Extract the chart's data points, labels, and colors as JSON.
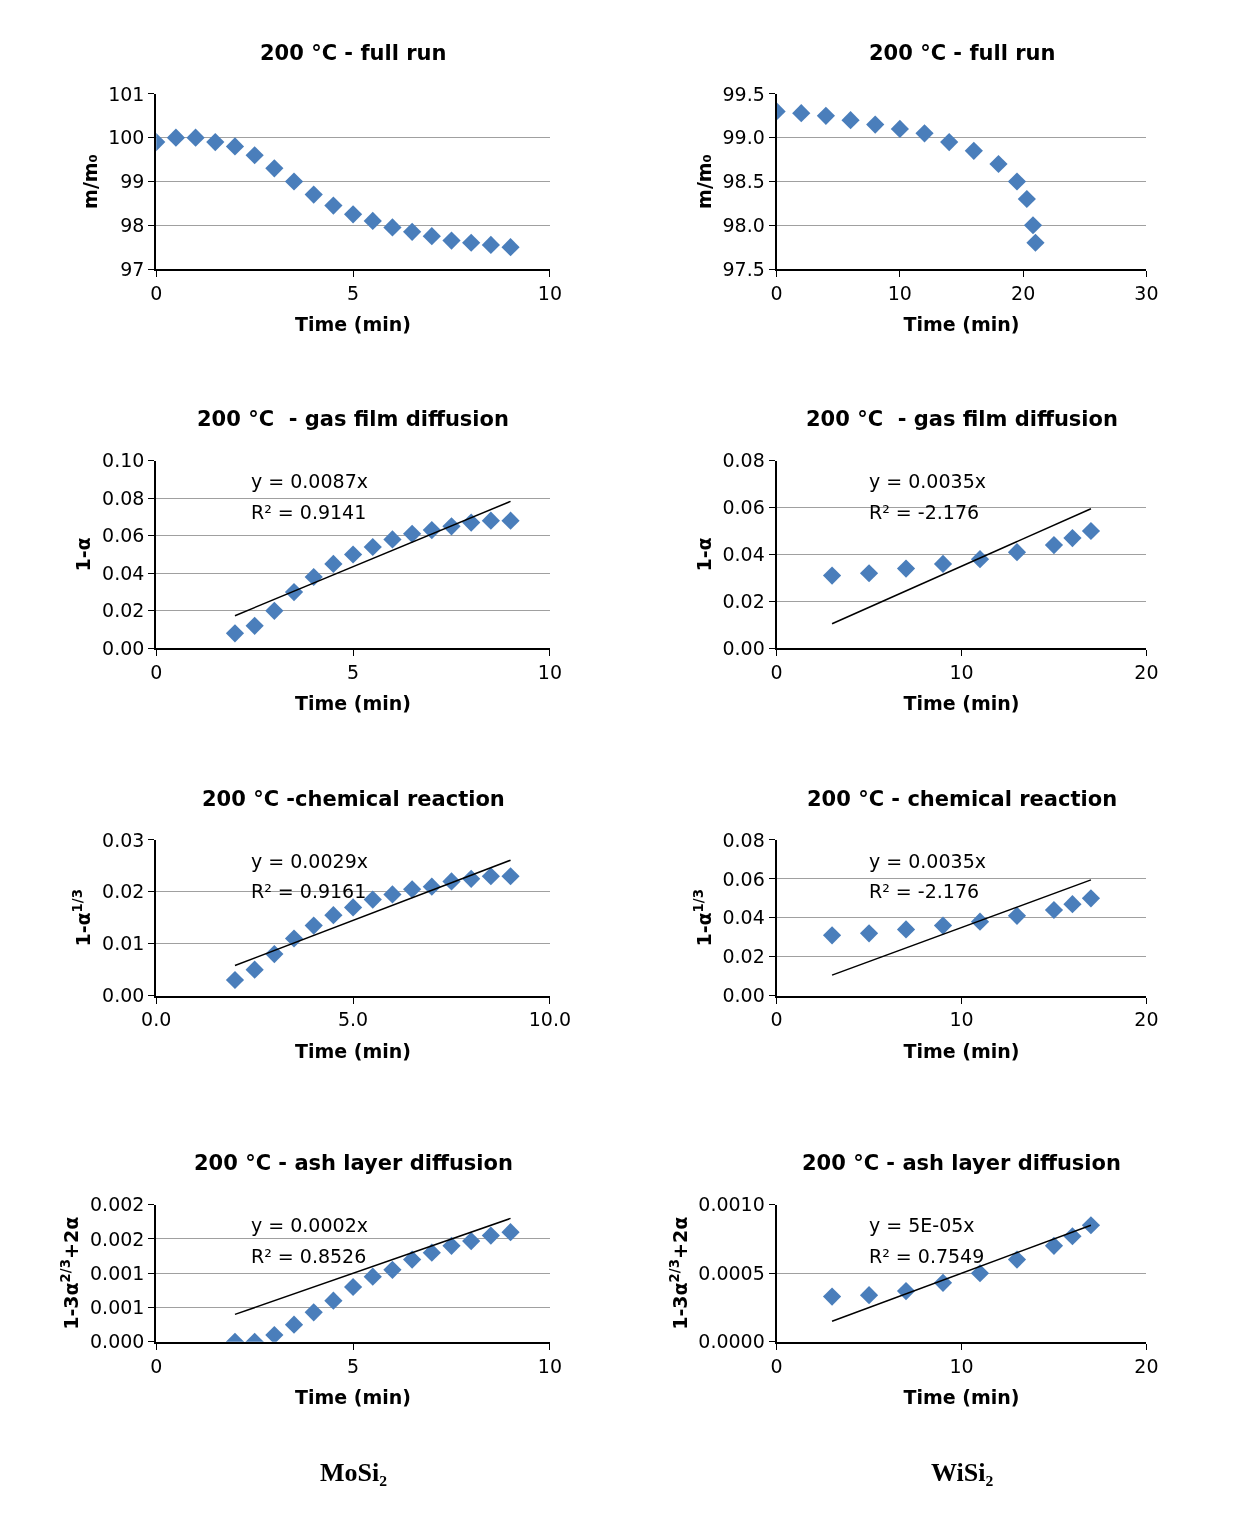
{
  "chart_data": [
    {
      "type": "scatter",
      "title": "200 °C - full run",
      "xlabel": "Time (min)",
      "ylabel": "m/m₀",
      "xlim": [
        0,
        10
      ],
      "xticks": [
        0,
        5,
        10
      ],
      "ylim": [
        97,
        101
      ],
      "yticks": [
        97,
        98,
        99,
        100,
        101
      ],
      "grid": "y",
      "marker": "diamond",
      "series": [
        {
          "color": "#4a7ebb",
          "x": [
            0,
            0.5,
            1,
            1.5,
            2,
            2.5,
            3,
            3.5,
            4,
            4.5,
            5,
            5.5,
            6,
            6.5,
            7,
            7.5,
            8,
            8.5,
            9
          ],
          "values": [
            99.9,
            100.0,
            100.0,
            99.9,
            99.8,
            99.6,
            99.3,
            99.0,
            98.7,
            98.45,
            98.25,
            98.1,
            97.95,
            97.85,
            97.75,
            97.65,
            97.6,
            97.55,
            97.5
          ]
        }
      ]
    },
    {
      "type": "scatter",
      "title": "200 °C - full run",
      "xlabel": "Time (min)",
      "ylabel": "m/m₀",
      "xlim": [
        0,
        30
      ],
      "xticks": [
        0,
        10,
        20,
        30
      ],
      "ylim": [
        97.5,
        99.5
      ],
      "yticks": [
        {
          "value": 97.5,
          "label": "97.5"
        },
        {
          "value": 98,
          "label": "98.0"
        },
        {
          "value": 98.5,
          "label": "98.5"
        },
        {
          "value": 99,
          "label": "99.0"
        },
        {
          "value": 99.5,
          "label": "99.5"
        }
      ],
      "grid": "y",
      "marker": "diamond",
      "series": [
        {
          "color": "#4a7ebb",
          "x": [
            0,
            2,
            4,
            6,
            8,
            10,
            12,
            14,
            16,
            18,
            19.5,
            20.3,
            20.8,
            21
          ],
          "values": [
            99.3,
            99.28,
            99.25,
            99.2,
            99.15,
            99.1,
            99.05,
            98.95,
            98.85,
            98.7,
            98.5,
            98.3,
            98.0,
            97.8
          ]
        }
      ]
    },
    {
      "type": "scatter",
      "title": "200 °C  - gas film diffusion",
      "xlabel": "Time (min)",
      "ylabel": "1-α",
      "xlim": [
        0,
        10
      ],
      "xticks": [
        0,
        5,
        10
      ],
      "ylim": [
        0,
        0.1
      ],
      "yticks": [
        {
          "value": 0,
          "label": "0.00"
        },
        {
          "value": 0.02,
          "label": "0.02"
        },
        {
          "value": 0.04,
          "label": "0.04"
        },
        {
          "value": 0.06,
          "label": "0.06"
        },
        {
          "value": 0.08,
          "label": "0.08"
        },
        {
          "value": 0.1,
          "label": "0.10"
        }
      ],
      "grid": "y",
      "marker": "diamond",
      "annotations": [
        "y = 0.0087x",
        "R² = 0.9141"
      ],
      "series": [
        {
          "color": "#4a7ebb",
          "x": [
            2,
            2.5,
            3,
            3.5,
            4,
            4.5,
            5,
            5.5,
            6,
            6.5,
            7,
            7.5,
            8,
            8.5,
            9
          ],
          "values": [
            0.008,
            0.012,
            0.02,
            0.03,
            0.038,
            0.045,
            0.05,
            0.054,
            0.058,
            0.061,
            0.063,
            0.065,
            0.067,
            0.068,
            0.068
          ]
        },
        {
          "type": "line",
          "marker": "none",
          "color": "#000000",
          "x": [
            2,
            9
          ],
          "values": [
            0.0174,
            0.0783
          ]
        }
      ]
    },
    {
      "type": "scatter",
      "title": "200 °C  - gas film diffusion",
      "xlabel": "Time (min)",
      "ylabel": "1-α",
      "xlim": [
        0,
        20
      ],
      "xticks": [
        0,
        10,
        20
      ],
      "ylim": [
        0,
        0.08
      ],
      "yticks": [
        {
          "value": 0,
          "label": "0.00"
        },
        {
          "value": 0.02,
          "label": "0.02"
        },
        {
          "value": 0.04,
          "label": "0.04"
        },
        {
          "value": 0.06,
          "label": "0.06"
        },
        {
          "value": 0.08,
          "label": "0.08"
        }
      ],
      "grid": "y",
      "marker": "diamond",
      "annotations": [
        "y = 0.0035x",
        "R² = -2.176"
      ],
      "series": [
        {
          "color": "#4a7ebb",
          "x": [
            3,
            5,
            7,
            9,
            11,
            13,
            15,
            16,
            17
          ],
          "values": [
            0.031,
            0.032,
            0.034,
            0.036,
            0.038,
            0.041,
            0.044,
            0.047,
            0.05
          ]
        },
        {
          "type": "line",
          "marker": "none",
          "color": "#000000",
          "x": [
            3,
            17
          ],
          "values": [
            0.0105,
            0.0595
          ]
        }
      ]
    },
    {
      "type": "scatter",
      "title": "200 °C -chemical reaction",
      "xlabel": "Time (min)",
      "ylabel": "1-α$^{1/3}$",
      "xlim": [
        0,
        10
      ],
      "xticks": [
        {
          "value": 0,
          "label": "0.0"
        },
        {
          "value": 5,
          "label": "5.0"
        },
        {
          "value": 10,
          "label": "10.0"
        }
      ],
      "ylim": [
        0,
        0.03
      ],
      "yticks": [
        {
          "value": 0,
          "label": "0.00"
        },
        {
          "value": 0.01,
          "label": "0.01"
        },
        {
          "value": 0.02,
          "label": "0.02"
        },
        {
          "value": 0.03,
          "label": "0.03"
        }
      ],
      "grid": "y",
      "marker": "diamond",
      "annotations": [
        "y = 0.0029x",
        "R² = 0.9161"
      ],
      "series": [
        {
          "color": "#4a7ebb",
          "x": [
            2,
            2.5,
            3,
            3.5,
            4,
            4.5,
            5,
            5.5,
            6,
            6.5,
            7,
            7.5,
            8,
            8.5,
            9
          ],
          "values": [
            0.003,
            0.005,
            0.008,
            0.011,
            0.0135,
            0.0155,
            0.017,
            0.0185,
            0.0195,
            0.0205,
            0.021,
            0.022,
            0.0225,
            0.023,
            0.023
          ]
        },
        {
          "type": "line",
          "marker": "none",
          "color": "#000000",
          "x": [
            2,
            9
          ],
          "values": [
            0.0058,
            0.0261
          ]
        }
      ]
    },
    {
      "type": "scatter",
      "title": "200 °C - chemical reaction",
      "xlabel": "Time (min)",
      "ylabel": "1-α$^{1/3}$",
      "xlim": [
        0,
        20
      ],
      "xticks": [
        0,
        10,
        20
      ],
      "ylim": [
        0,
        0.08
      ],
      "yticks": [
        {
          "value": 0,
          "label": "0.00"
        },
        {
          "value": 0.02,
          "label": "0.02"
        },
        {
          "value": 0.04,
          "label": "0.04"
        },
        {
          "value": 0.06,
          "label": "0.06"
        },
        {
          "value": 0.08,
          "label": "0.08"
        }
      ],
      "grid": "y",
      "marker": "diamond",
      "annotations": [
        "y = 0.0035x",
        "R² = -2.176"
      ],
      "series": [
        {
          "color": "#4a7ebb",
          "x": [
            3,
            5,
            7,
            9,
            11,
            13,
            15,
            16,
            17
          ],
          "values": [
            0.031,
            0.032,
            0.034,
            0.036,
            0.038,
            0.041,
            0.044,
            0.047,
            0.05
          ]
        },
        {
          "type": "line",
          "marker": "none",
          "color": "#000000",
          "x": [
            3,
            17
          ],
          "values": [
            0.0105,
            0.0595
          ]
        }
      ]
    },
    {
      "type": "scatter",
      "title": "200 °C - ash layer diffusion",
      "xlabel": "Time (min)",
      "ylabel": "1-3α$^{2/3}$+2α",
      "xlim": [
        0,
        10
      ],
      "xticks": [
        0,
        5,
        10
      ],
      "ylim": [
        0,
        0.002
      ],
      "yticks": [
        {
          "value": 0,
          "label": "0.000"
        },
        {
          "value": 0.0005,
          "label": "0.001"
        },
        {
          "value": 0.001,
          "label": "0.001"
        },
        {
          "value": 0.0015,
          "label": "0.002"
        },
        {
          "value": 0.002,
          "label": "0.002"
        }
      ],
      "grid": "y",
      "marker": "diamond",
      "annotations": [
        "y = 0.0002x",
        "R² = 0.8526",
        "MoSi₂"
      ],
      "series": [
        {
          "color": "#4a7ebb",
          "x": [
            2,
            2.5,
            3,
            3.5,
            4,
            4.5,
            5,
            5.5,
            6,
            6.5,
            7,
            7.5,
            8,
            8.5,
            9
          ],
          "values": [
            0.0,
            0.0,
            0.0001,
            0.00025,
            0.00043,
            0.0006,
            0.0008,
            0.00095,
            0.00105,
            0.0012,
            0.0013,
            0.0014,
            0.00147,
            0.00155,
            0.0016
          ]
        },
        {
          "type": "line",
          "marker": "none",
          "color": "#000000",
          "x": [
            2,
            9
          ],
          "values": [
            0.0004,
            0.0018
          ]
        }
      ]
    },
    {
      "type": "scatter",
      "title": "200 °C - ash layer diffusion",
      "xlabel": "Time (min)",
      "ylabel": "1-3α$^{2/3}$+2α",
      "xlim": [
        0,
        20
      ],
      "xticks": [
        0,
        10,
        20
      ],
      "ylim": [
        0,
        0.001
      ],
      "yticks": [
        {
          "value": 0,
          "label": "0.0000"
        },
        {
          "value": 0.0005,
          "label": "0.0005"
        },
        {
          "value": 0.001,
          "label": "0.0010"
        }
      ],
      "grid": "y",
      "marker": "diamond",
      "annotations": [
        "y = 5E-05x",
        "R² = 0.7549",
        "WiSi₂"
      ],
      "series": [
        {
          "color": "#4a7ebb",
          "x": [
            3,
            5,
            7,
            9,
            11,
            13,
            15,
            16,
            17
          ],
          "values": [
            0.00033,
            0.00034,
            0.00037,
            0.00043,
            0.0005,
            0.0006,
            0.0007,
            0.00077,
            0.00085
          ]
        },
        {
          "type": "line",
          "marker": "none",
          "color": "#000000",
          "x": [
            3,
            17
          ],
          "values": [
            0.00015,
            0.00085
          ]
        }
      ]
    }
  ]
}
